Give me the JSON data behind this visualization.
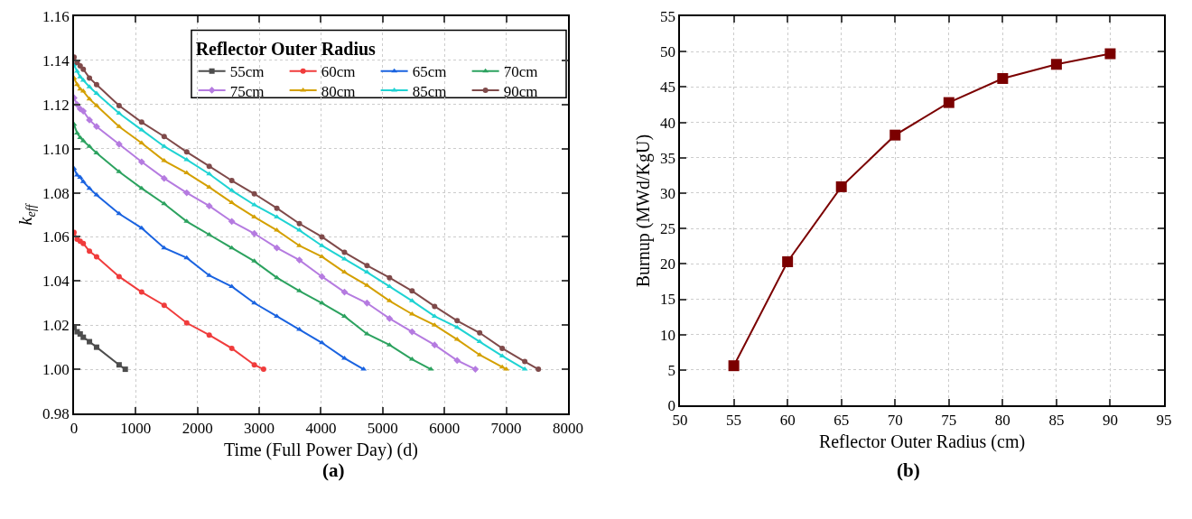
{
  "chart_data": [
    {
      "type": "line",
      "xlabel": "Time (Full Power Day) (d)",
      "ylabel": "k$_{eff}$",
      "legend_title": "Reflector Outer Radius",
      "legend": "top right",
      "grid": true,
      "line_style": "solid",
      "annotations": [
        "(a)"
      ],
      "xlim": [
        0,
        8000
      ],
      "xticks": [
        0,
        1000,
        2000,
        3000,
        4000,
        5000,
        6000,
        7000,
        8000
      ],
      "ylim": [
        0.98,
        1.16
      ],
      "yticks": [
        {
          "value": 0.98,
          "label": "0.98"
        },
        {
          "value": 1.0,
          "label": "1.00"
        },
        {
          "value": 1.02,
          "label": "1.02"
        },
        {
          "value": 1.04,
          "label": "1.04"
        },
        {
          "value": 1.06,
          "label": "1.06"
        },
        {
          "value": 1.08,
          "label": "1.08"
        },
        {
          "value": 1.1,
          "label": "1.10"
        },
        {
          "value": 1.12,
          "label": "1.12"
        },
        {
          "value": 1.14,
          "label": "1.14"
        },
        {
          "value": 1.16,
          "label": "1.16"
        }
      ],
      "series": [
        {
          "name": "55cm",
          "color": "#4d4d4d",
          "marker": "square",
          "x": [
            0,
            50,
            100,
            150,
            250,
            365,
            730,
            830
          ],
          "values": [
            1.019,
            1.017,
            1.016,
            1.0145,
            1.0125,
            1.01,
            1.002,
            1.0
          ]
        },
        {
          "name": "60cm",
          "color": "#f03c3c",
          "marker": "circle",
          "x": [
            0,
            50,
            100,
            150,
            250,
            365,
            730,
            1095,
            1460,
            1825,
            2190,
            2555,
            2920,
            3070
          ],
          "values": [
            1.062,
            1.059,
            1.058,
            1.057,
            1.0535,
            1.051,
            1.042,
            1.035,
            1.029,
            1.021,
            1.0155,
            1.0095,
            1.002,
            1.0
          ]
        },
        {
          "name": "65cm",
          "color": "#1a63e0",
          "marker": "triangle",
          "x": [
            0,
            50,
            100,
            150,
            250,
            365,
            730,
            1095,
            1460,
            1825,
            2190,
            2555,
            2920,
            3285,
            3650,
            4015,
            4380,
            4690
          ],
          "values": [
            1.091,
            1.088,
            1.087,
            1.085,
            1.082,
            1.079,
            1.0705,
            1.064,
            1.055,
            1.0505,
            1.0425,
            1.0375,
            1.03,
            1.024,
            1.018,
            1.012,
            1.005,
            1.0
          ]
        },
        {
          "name": "70cm",
          "color": "#2ca25f",
          "marker": "triangle",
          "x": [
            0,
            50,
            100,
            150,
            250,
            365,
            730,
            1095,
            1460,
            1825,
            2190,
            2555,
            2920,
            3285,
            3650,
            4015,
            4380,
            4745,
            5110,
            5475,
            5780
          ],
          "values": [
            1.111,
            1.107,
            1.105,
            1.1035,
            1.101,
            1.098,
            1.0895,
            1.082,
            1.075,
            1.067,
            1.061,
            1.055,
            1.049,
            1.0415,
            1.0355,
            1.03,
            1.024,
            1.016,
            1.011,
            1.0045,
            1.0
          ]
        },
        {
          "name": "75cm",
          "color": "#b57be0",
          "marker": "diamond",
          "x": [
            0,
            50,
            100,
            150,
            250,
            365,
            730,
            1095,
            1460,
            1825,
            2190,
            2555,
            2920,
            3285,
            3650,
            4015,
            4380,
            4745,
            5110,
            5475,
            5840,
            6205,
            6500
          ],
          "values": [
            1.123,
            1.12,
            1.118,
            1.117,
            1.113,
            1.11,
            1.102,
            1.094,
            1.0865,
            1.08,
            1.074,
            1.067,
            1.0615,
            1.055,
            1.0495,
            1.042,
            1.035,
            1.03,
            1.023,
            1.017,
            1.011,
            1.004,
            1.0
          ]
        },
        {
          "name": "80cm",
          "color": "#d4a000",
          "marker": "triangle",
          "x": [
            0,
            50,
            100,
            150,
            250,
            365,
            730,
            1095,
            1460,
            1825,
            2190,
            2555,
            2920,
            3285,
            3650,
            4015,
            4380,
            4745,
            5110,
            5475,
            5840,
            6205,
            6570,
            6935,
            7000
          ],
          "values": [
            1.132,
            1.129,
            1.127,
            1.126,
            1.1225,
            1.1195,
            1.11,
            1.1025,
            1.0945,
            1.089,
            1.0825,
            1.0755,
            1.069,
            1.063,
            1.056,
            1.051,
            1.044,
            1.038,
            1.031,
            1.025,
            1.02,
            1.0135,
            1.0065,
            1.001,
            1.0
          ]
        },
        {
          "name": "85cm",
          "color": "#1fd3d3",
          "marker": "triangle",
          "x": [
            0,
            50,
            100,
            150,
            250,
            365,
            730,
            1095,
            1460,
            1825,
            2190,
            2555,
            2920,
            3285,
            3650,
            4015,
            4380,
            4745,
            5110,
            5475,
            5840,
            6205,
            6570,
            6935,
            7300
          ],
          "values": [
            1.138,
            1.135,
            1.1325,
            1.131,
            1.128,
            1.125,
            1.116,
            1.1085,
            1.101,
            1.095,
            1.0885,
            1.081,
            1.0745,
            1.069,
            1.063,
            1.056,
            1.05,
            1.044,
            1.0375,
            1.031,
            1.024,
            1.019,
            1.0125,
            1.006,
            1.0
          ]
        },
        {
          "name": "90cm",
          "color": "#7f4a4a",
          "marker": "circle",
          "x": [
            0,
            50,
            100,
            150,
            250,
            365,
            730,
            1095,
            1460,
            1825,
            2190,
            2555,
            2920,
            3285,
            3650,
            4015,
            4380,
            4745,
            5110,
            5475,
            5840,
            6205,
            6570,
            6935,
            7300,
            7520
          ],
          "values": [
            1.1415,
            1.139,
            1.1375,
            1.136,
            1.132,
            1.129,
            1.1195,
            1.112,
            1.1055,
            1.0985,
            1.092,
            1.0855,
            1.0795,
            1.073,
            1.066,
            1.06,
            1.053,
            1.047,
            1.0415,
            1.0355,
            1.0285,
            1.022,
            1.0165,
            1.0095,
            1.0035,
            1.0
          ]
        }
      ]
    },
    {
      "type": "line",
      "xlabel": "Reflector Outer Radius (cm)",
      "ylabel": "Burnup (MWd/KgU)",
      "grid": true,
      "line_style": "solid",
      "marker": "square",
      "annotations": [
        "(b)"
      ],
      "xlim": [
        50,
        95
      ],
      "xticks": [
        50,
        55,
        60,
        65,
        70,
        75,
        80,
        85,
        90,
        95
      ],
      "ylim": [
        0,
        55
      ],
      "yticks": [
        0,
        5,
        10,
        15,
        20,
        25,
        30,
        35,
        40,
        45,
        50,
        55
      ],
      "series": [
        {
          "color": "#7b0000",
          "x": [
            55,
            60,
            65,
            70,
            75,
            80,
            85,
            90
          ],
          "values": [
            5.6,
            20.3,
            30.9,
            38.2,
            42.8,
            46.2,
            48.2,
            49.7
          ]
        }
      ]
    }
  ]
}
